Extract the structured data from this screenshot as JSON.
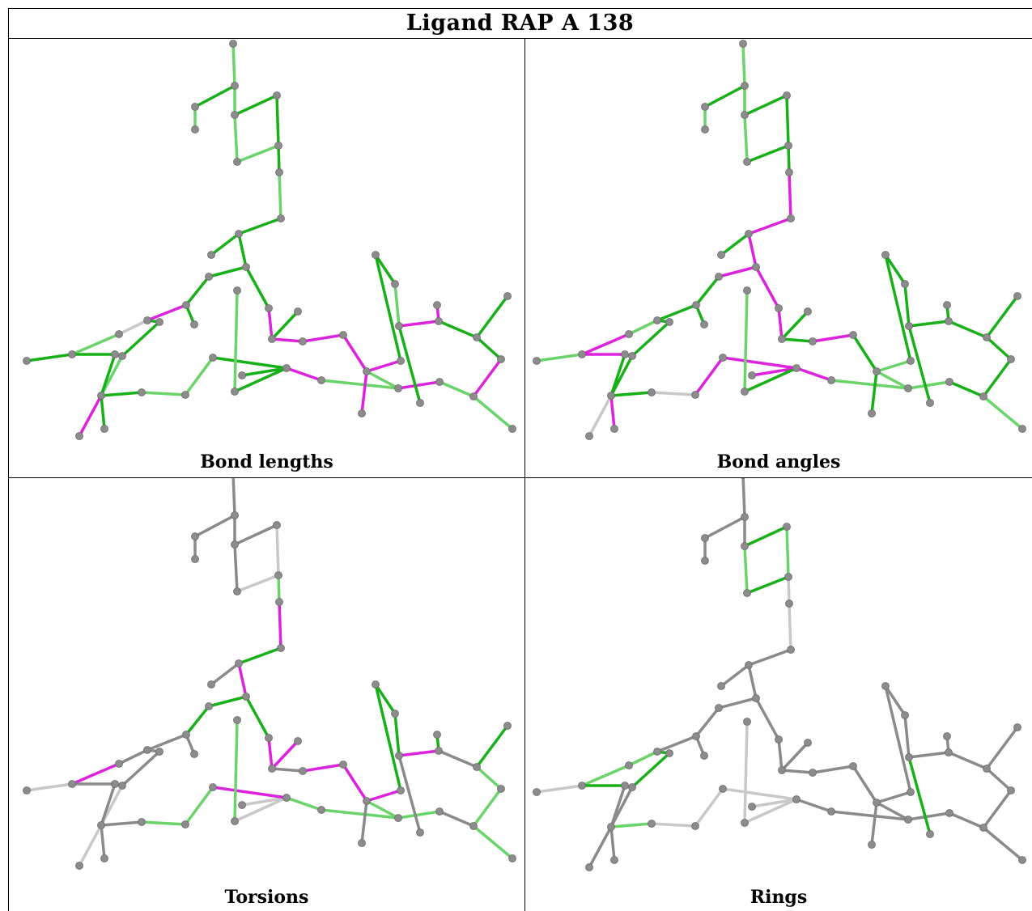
{
  "title": "Ligand RAP A 138",
  "panels": [
    {
      "caption": "Bond lengths"
    },
    {
      "caption": "Bond angles"
    },
    {
      "caption": "Torsions"
    },
    {
      "caption": "Rings"
    }
  ],
  "colors": {
    "green_dark": "#18b018",
    "green_light": "#6ad46a",
    "magenta": "#dd22dd",
    "gray": "#8a8a8a",
    "gray_light": "#c8c8c8",
    "atom": "#8c8c8c"
  }
}
